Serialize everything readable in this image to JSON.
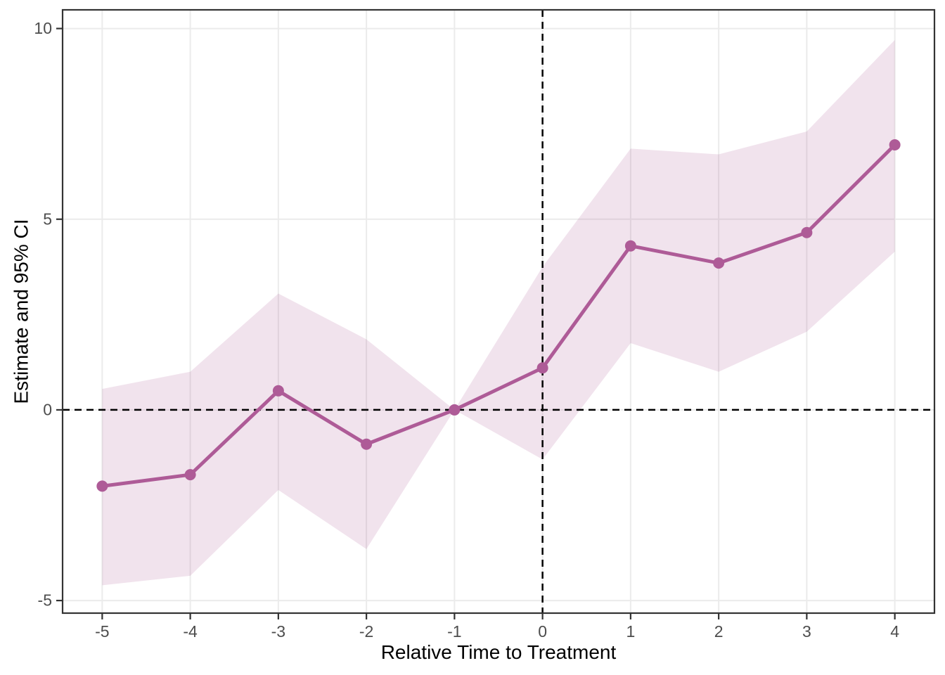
{
  "chart_data": {
    "type": "line",
    "title": "",
    "xlabel": "Relative Time to Treatment",
    "ylabel": "Estimate and 95% CI",
    "x": [
      -5,
      -4,
      -3,
      -2,
      -1,
      0,
      1,
      2,
      3,
      4
    ],
    "series": [
      {
        "name": "estimate",
        "values": [
          -2.0,
          -1.7,
          0.5,
          -0.9,
          0,
          1.1,
          4.3,
          3.85,
          4.65,
          6.95
        ]
      },
      {
        "name": "ci_lower",
        "values": [
          -4.6,
          -4.35,
          -2.1,
          -3.65,
          0,
          -1.3,
          1.75,
          1.0,
          2.05,
          4.15
        ]
      },
      {
        "name": "ci_upper",
        "values": [
          0.55,
          1.0,
          3.05,
          1.85,
          0,
          3.75,
          6.85,
          6.7,
          7.3,
          9.7
        ]
      }
    ],
    "x_ticks": [
      -5,
      -4,
      -3,
      -2,
      -1,
      0,
      1,
      2,
      3,
      4
    ],
    "y_ticks": [
      10,
      5,
      0,
      -5
    ],
    "xlim": [
      -5.45,
      4.45
    ],
    "ylim": [
      -5.33,
      10.49
    ],
    "reference_lines": [
      {
        "axis": "y",
        "value": 0,
        "style": "dashed"
      },
      {
        "axis": "x",
        "value": 0,
        "style": "dashed"
      }
    ],
    "grid": "major",
    "legend": "none",
    "colors": {
      "line": "#ae5b97",
      "point": "#ae5b97",
      "ribbon": "rgba(174,91,150,0.17)",
      "grid": "#ebebeb",
      "panel_border": "#333333",
      "tick_mark": "#333333",
      "tick_label": "#4d4d4d",
      "axis_title": "#000000",
      "ref_line": "#000000",
      "panel_background": "#ffffff"
    }
  }
}
